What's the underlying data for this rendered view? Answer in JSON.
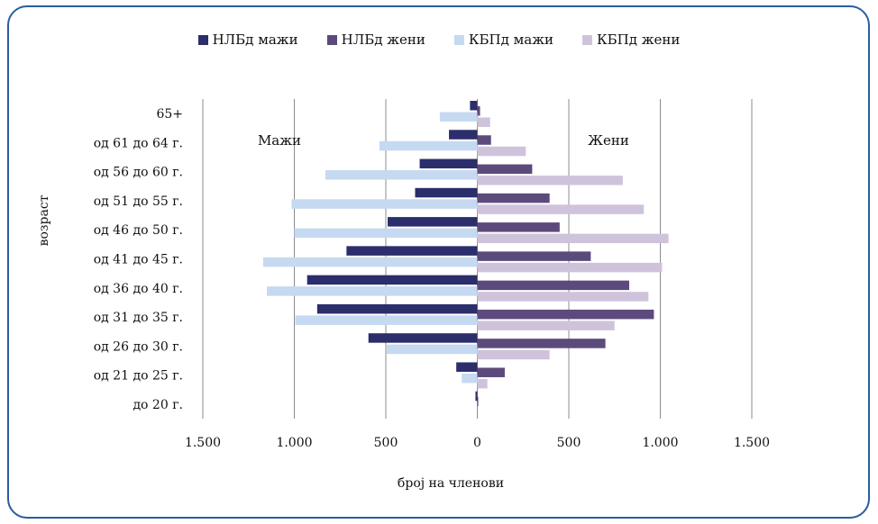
{
  "chart_data": {
    "type": "bar",
    "orientation": "horizontal",
    "categories": [
      "65+",
      "од 61 до 64 г.",
      "од 56 до 60 г.",
      "од 51 до 55 г.",
      "од 46 до 50 г.",
      "од 41 до 45 г.",
      "од 36 до 40 г.",
      "од 31 до 35 г.",
      "од 26 до 30 г.",
      "од 21 до 25 г.",
      "до 20 г."
    ],
    "series": [
      {
        "name": "НЛБд мажи",
        "color": "#2b2e6b",
        "side": "left",
        "values": [
          40,
          155,
          315,
          340,
          490,
          715,
          930,
          875,
          595,
          115,
          10
        ]
      },
      {
        "name": "НЛБд жени",
        "color": "#5c4a7c",
        "side": "right",
        "values": [
          15,
          75,
          300,
          395,
          450,
          620,
          830,
          965,
          700,
          150,
          5
        ]
      },
      {
        "name": "КБПд мажи",
        "color": "#c5d9f1",
        "side": "left",
        "values": [
          205,
          535,
          830,
          1015,
          1000,
          1170,
          1150,
          995,
          495,
          85,
          0
        ]
      },
      {
        "name": "КБПд жени",
        "color": "#cfc3dc",
        "side": "right",
        "values": [
          70,
          265,
          795,
          910,
          1045,
          1010,
          935,
          750,
          395,
          55,
          0
        ]
      }
    ],
    "xlim": [
      -1500,
      1500
    ],
    "xticks": [
      "1.500",
      "1.000",
      "500",
      "0",
      "500",
      "1.000",
      "1.500"
    ],
    "xlabel": "број на членови",
    "ylabel": "возраст",
    "annotations": {
      "left": "Мажи",
      "right": "Жени"
    },
    "grid": "vertical",
    "legend_position": "top"
  }
}
